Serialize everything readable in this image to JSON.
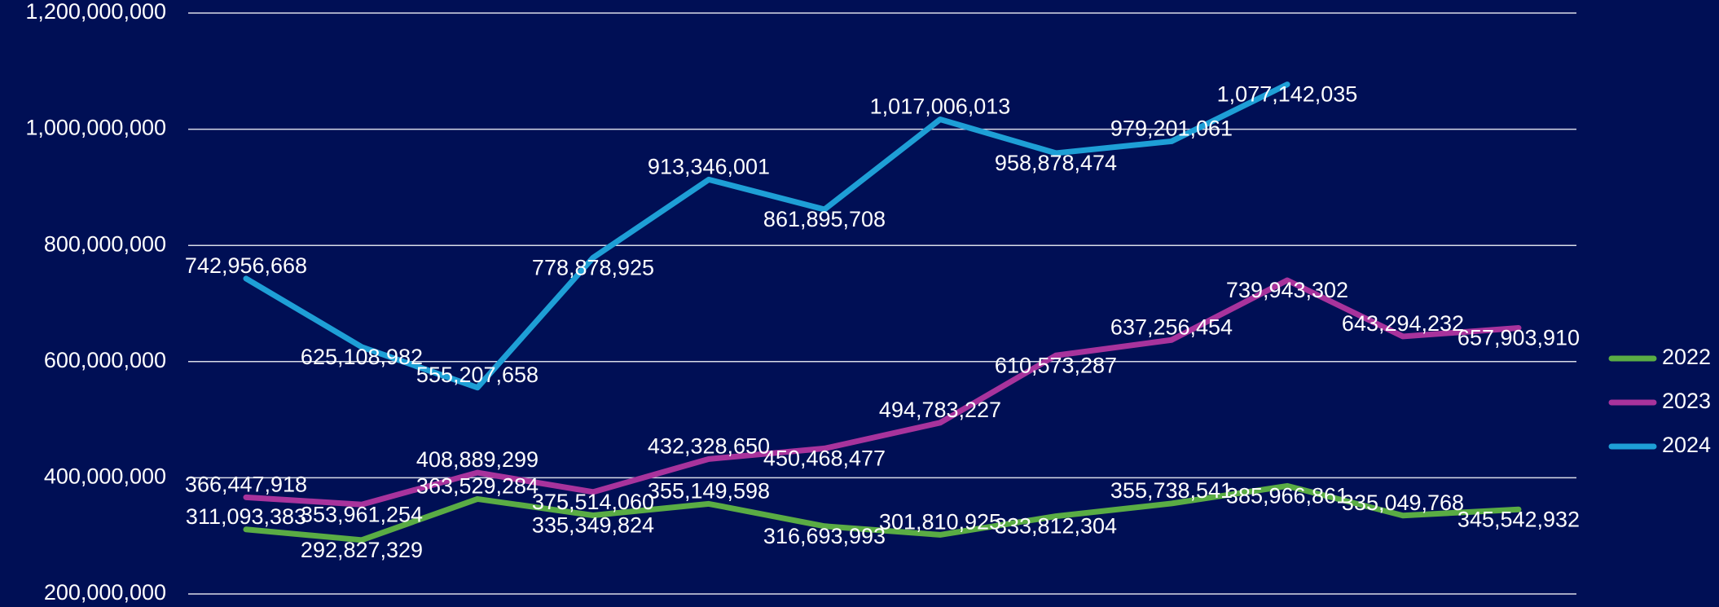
{
  "chart_data": {
    "type": "line",
    "categories": [
      null,
      null,
      null,
      null,
      null,
      null,
      null,
      null,
      null,
      null,
      null,
      null
    ],
    "series": [
      {
        "name": "2022",
        "color": "#5aac44",
        "values": [
          311093383,
          292827329,
          363529284,
          335349824,
          355149598,
          316693993,
          301810925,
          333812304,
          355738541,
          385966861,
          335049768,
          345542932
        ],
        "value_labels": [
          "311,093,383",
          "292,827,329",
          "363,529,284",
          "335,349,824",
          "355,149,598",
          "316,693,993",
          "301,810,925",
          "333,812,304",
          "355,738,541",
          "385,966,861",
          "335,049,768",
          "345,542,932"
        ]
      },
      {
        "name": "2023",
        "color": "#a8339c",
        "values": [
          366447918,
          353961254,
          408889299,
          375514060,
          432328650,
          450468477,
          494783227,
          610573287,
          637256454,
          739943302,
          643294232,
          657903910
        ],
        "value_labels": [
          "366,447,918",
          "353,961,254",
          "408,889,299",
          "375,514,060",
          "432,328,650",
          "450,468,477",
          "494,783,227",
          "610,573,287",
          "637,256,454",
          "739,943,302",
          "643,294,232",
          "657,903,910"
        ]
      },
      {
        "name": "2024",
        "color": "#1e9fd6",
        "values": [
          742956668,
          625108982,
          555207658,
          778878925,
          913346001,
          861895708,
          1017006013,
          958878474,
          979201061,
          1077142035,
          null,
          null
        ],
        "value_labels": [
          "742,956,668",
          "625,108,982",
          "555,207,658",
          "778,878,925",
          "913,346,001",
          "861,895,708",
          "1,017,006,013",
          "958,878,474",
          "979,201,061",
          "1,077,142,035",
          null,
          null
        ]
      }
    ],
    "ylim": [
      200000000,
      1200000000
    ],
    "yticks": [
      {
        "value": 200000000,
        "label": "200,000,000"
      },
      {
        "value": 400000000,
        "label": "400,000,000"
      },
      {
        "value": 600000000,
        "label": "600,000,000"
      },
      {
        "value": 800000000,
        "label": "800,000,000"
      },
      {
        "value": 1000000000,
        "label": "1,000,000,000"
      },
      {
        "value": 1200000000,
        "label": "1,200,000,000"
      }
    ],
    "grid": true,
    "legend": "right"
  }
}
